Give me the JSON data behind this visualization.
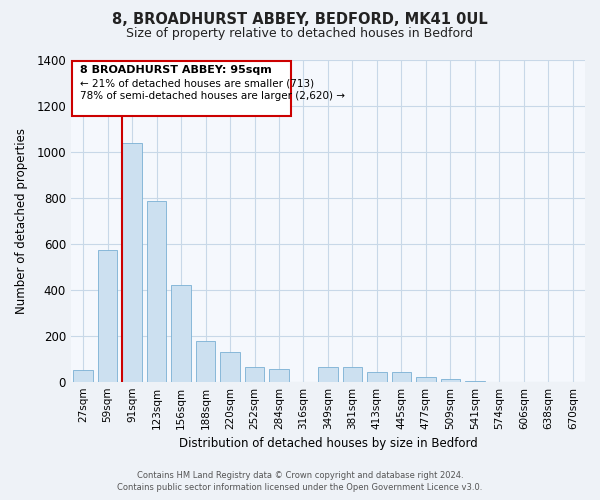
{
  "title": "8, BROADHURST ABBEY, BEDFORD, MK41 0UL",
  "subtitle": "Size of property relative to detached houses in Bedford",
  "xlabel": "Distribution of detached houses by size in Bedford",
  "ylabel": "Number of detached properties",
  "footer_lines": [
    "Contains HM Land Registry data © Crown copyright and database right 2024.",
    "Contains public sector information licensed under the Open Government Licence v3.0."
  ],
  "bar_labels": [
    "27sqm",
    "59sqm",
    "91sqm",
    "123sqm",
    "156sqm",
    "188sqm",
    "220sqm",
    "252sqm",
    "284sqm",
    "316sqm",
    "349sqm",
    "381sqm",
    "413sqm",
    "445sqm",
    "477sqm",
    "509sqm",
    "541sqm",
    "574sqm",
    "606sqm",
    "638sqm",
    "670sqm"
  ],
  "bar_values": [
    50,
    575,
    1040,
    785,
    420,
    178,
    127,
    65,
    55,
    0,
    65,
    65,
    40,
    40,
    20,
    10,
    5,
    0,
    0,
    0,
    0
  ],
  "bar_color": "#cce0f0",
  "bar_edge_color": "#7ab0d4",
  "vline_x": 2,
  "vline_color": "#cc0000",
  "ylim": [
    0,
    1400
  ],
  "yticks": [
    0,
    200,
    400,
    600,
    800,
    1000,
    1200,
    1400
  ],
  "annotation_title": "8 BROADHURST ABBEY: 95sqm",
  "annotation_line1": "← 21% of detached houses are smaller (713)",
  "annotation_line2": "78% of semi-detached houses are larger (2,620) →",
  "background_color": "#eef2f7",
  "plot_background": "#f5f8fd",
  "grid_color": "#c8d8e8",
  "title_color": "#222222"
}
